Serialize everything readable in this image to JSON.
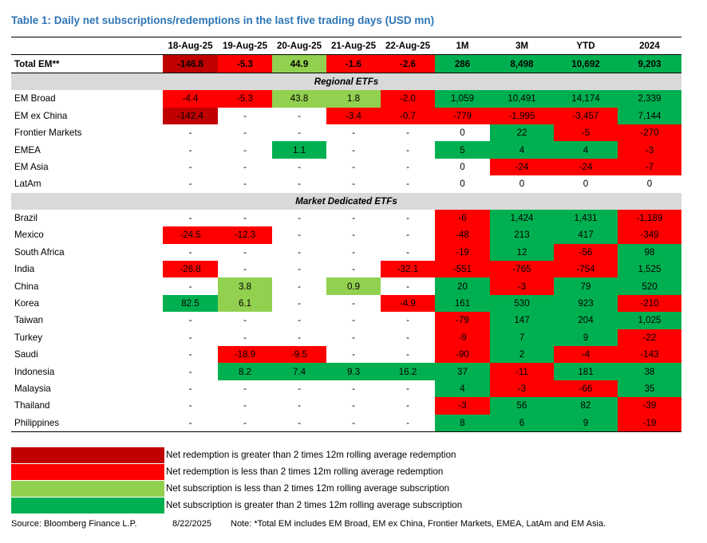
{
  "title": "Table 1: Daily net subscriptions/redemptions in the last five trading days (USD mn)",
  "columns": [
    "18-Aug-25",
    "19-Aug-25",
    "20-Aug-25",
    "21-Aug-25",
    "22-Aug-25",
    "1M",
    "3M",
    "YTD",
    "2024"
  ],
  "colors": {
    "dr": "#c00000",
    "r": "#ff0000",
    "lg": "#92d050",
    "g": "#00b050"
  },
  "total": {
    "label": "Total EM**",
    "cells": [
      [
        "-146.8",
        "dr"
      ],
      [
        "-5.3",
        "r"
      ],
      [
        "44.9",
        "lg"
      ],
      [
        "-1.6",
        "r"
      ],
      [
        "-2.6",
        "r"
      ],
      [
        "286",
        "g"
      ],
      [
        "8,498",
        "g"
      ],
      [
        "10,692",
        "g"
      ],
      [
        "9,203",
        "g"
      ]
    ]
  },
  "sections": [
    {
      "title": "Regional ETFs",
      "rows": [
        {
          "label": "EM Broad",
          "cells": [
            [
              "-4.4",
              "r"
            ],
            [
              "-5.3",
              "r"
            ],
            [
              "43.8",
              "lg"
            ],
            [
              "1.8",
              "lg"
            ],
            [
              "-2.0",
              "r"
            ],
            [
              "1,059",
              "g"
            ],
            [
              "10,491",
              "g"
            ],
            [
              "14,174",
              "g"
            ],
            [
              "2,339",
              "g"
            ]
          ]
        },
        {
          "label": "EM ex China",
          "cells": [
            [
              "-142.4",
              "dr"
            ],
            [
              "-",
              ""
            ],
            [
              "-",
              ""
            ],
            [
              "-3.4",
              "r"
            ],
            [
              "-0.7",
              "r"
            ],
            [
              "-779",
              "r"
            ],
            [
              "-1,995",
              "r"
            ],
            [
              "-3,457",
              "r"
            ],
            [
              "7,144",
              "g"
            ]
          ]
        },
        {
          "label": "Frontier Markets",
          "cells": [
            [
              "-",
              ""
            ],
            [
              "-",
              ""
            ],
            [
              "-",
              ""
            ],
            [
              "-",
              ""
            ],
            [
              "-",
              ""
            ],
            [
              "0",
              ""
            ],
            [
              "22",
              "g"
            ],
            [
              "-5",
              "r"
            ],
            [
              "-270",
              "r"
            ]
          ]
        },
        {
          "label": "EMEA",
          "cells": [
            [
              "-",
              ""
            ],
            [
              "-",
              ""
            ],
            [
              "1.1",
              "g"
            ],
            [
              "-",
              ""
            ],
            [
              "-",
              ""
            ],
            [
              "5",
              "g"
            ],
            [
              "4",
              "g"
            ],
            [
              "4",
              "g"
            ],
            [
              "-3",
              "r"
            ]
          ]
        },
        {
          "label": "EM Asia",
          "cells": [
            [
              "-",
              ""
            ],
            [
              "-",
              ""
            ],
            [
              "-",
              ""
            ],
            [
              "-",
              ""
            ],
            [
              "-",
              ""
            ],
            [
              "0",
              ""
            ],
            [
              "-24",
              "r"
            ],
            [
              "-24",
              "r"
            ],
            [
              "-7",
              "r"
            ]
          ]
        },
        {
          "label": "LatAm",
          "cells": [
            [
              "-",
              ""
            ],
            [
              "-",
              ""
            ],
            [
              "-",
              ""
            ],
            [
              "-",
              ""
            ],
            [
              "-",
              ""
            ],
            [
              "0",
              ""
            ],
            [
              "0",
              ""
            ],
            [
              "0",
              ""
            ],
            [
              "0",
              ""
            ]
          ]
        }
      ]
    },
    {
      "title": "Market Dedicated ETFs",
      "rows": [
        {
          "label": "Brazil",
          "cells": [
            [
              "-",
              ""
            ],
            [
              "-",
              ""
            ],
            [
              "-",
              ""
            ],
            [
              "-",
              ""
            ],
            [
              "-",
              ""
            ],
            [
              "-6",
              "r"
            ],
            [
              "1,424",
              "g"
            ],
            [
              "1,431",
              "g"
            ],
            [
              "-1,189",
              "r"
            ]
          ]
        },
        {
          "label": "Mexico",
          "cells": [
            [
              "-24.5",
              "r"
            ],
            [
              "-12.3",
              "r"
            ],
            [
              "-",
              ""
            ],
            [
              "-",
              ""
            ],
            [
              "-",
              ""
            ],
            [
              "-48",
              "r"
            ],
            [
              "213",
              "g"
            ],
            [
              "417",
              "g"
            ],
            [
              "-349",
              "r"
            ]
          ]
        },
        {
          "label": "South Africa",
          "cells": [
            [
              "-",
              ""
            ],
            [
              "-",
              ""
            ],
            [
              "-",
              ""
            ],
            [
              "-",
              ""
            ],
            [
              "-",
              ""
            ],
            [
              "-19",
              "r"
            ],
            [
              "12",
              "g"
            ],
            [
              "-56",
              "r"
            ],
            [
              "98",
              "g"
            ]
          ]
        },
        {
          "label": "India",
          "cells": [
            [
              "-26.8",
              "r"
            ],
            [
              "-",
              ""
            ],
            [
              "-",
              ""
            ],
            [
              "-",
              ""
            ],
            [
              "-32.1",
              "r"
            ],
            [
              "-551",
              "r"
            ],
            [
              "-765",
              "r"
            ],
            [
              "-754",
              "r"
            ],
            [
              "1,525",
              "g"
            ]
          ]
        },
        {
          "label": "China",
          "cells": [
            [
              "-",
              ""
            ],
            [
              "3.8",
              "lg"
            ],
            [
              "-",
              ""
            ],
            [
              "0.9",
              "lg"
            ],
            [
              "-",
              ""
            ],
            [
              "20",
              "g"
            ],
            [
              "-3",
              "r"
            ],
            [
              "79",
              "g"
            ],
            [
              "520",
              "g"
            ]
          ]
        },
        {
          "label": "Korea",
          "cells": [
            [
              "82.5",
              "g"
            ],
            [
              "6.1",
              "lg"
            ],
            [
              "-",
              ""
            ],
            [
              "-",
              ""
            ],
            [
              "-4.9",
              "r"
            ],
            [
              "161",
              "g"
            ],
            [
              "530",
              "g"
            ],
            [
              "923",
              "g"
            ],
            [
              "-210",
              "r"
            ]
          ]
        },
        {
          "label": "Taiwan",
          "cells": [
            [
              "-",
              ""
            ],
            [
              "-",
              ""
            ],
            [
              "-",
              ""
            ],
            [
              "-",
              ""
            ],
            [
              "-",
              ""
            ],
            [
              "-79",
              "r"
            ],
            [
              "147",
              "g"
            ],
            [
              "204",
              "g"
            ],
            [
              "1,025",
              "g"
            ]
          ]
        },
        {
          "label": "Turkey",
          "cells": [
            [
              "-",
              ""
            ],
            [
              "-",
              ""
            ],
            [
              "-",
              ""
            ],
            [
              "-",
              ""
            ],
            [
              "-",
              ""
            ],
            [
              "-9",
              "r"
            ],
            [
              "7",
              "g"
            ],
            [
              "9",
              "g"
            ],
            [
              "-22",
              "r"
            ]
          ]
        },
        {
          "label": "Saudi",
          "cells": [
            [
              "-",
              ""
            ],
            [
              "-18.9",
              "r"
            ],
            [
              "-9.5",
              "r"
            ],
            [
              "-",
              ""
            ],
            [
              "-",
              ""
            ],
            [
              "-90",
              "r"
            ],
            [
              "2",
              "g"
            ],
            [
              "-4",
              "r"
            ],
            [
              "-143",
              "r"
            ]
          ]
        },
        {
          "label": "Indonesia",
          "cells": [
            [
              "-",
              ""
            ],
            [
              "8.2",
              "g"
            ],
            [
              "7.4",
              "g"
            ],
            [
              "9.3",
              "g"
            ],
            [
              "16.2",
              "g"
            ],
            [
              "37",
              "g"
            ],
            [
              "-11",
              "r"
            ],
            [
              "181",
              "g"
            ],
            [
              "38",
              "g"
            ]
          ]
        },
        {
          "label": "Malaysia",
          "cells": [
            [
              "-",
              ""
            ],
            [
              "-",
              ""
            ],
            [
              "-",
              ""
            ],
            [
              "-",
              ""
            ],
            [
              "-",
              ""
            ],
            [
              "4",
              "g"
            ],
            [
              "-3",
              "r"
            ],
            [
              "-66",
              "r"
            ],
            [
              "35",
              "g"
            ]
          ]
        },
        {
          "label": "Thailand",
          "cells": [
            [
              "-",
              ""
            ],
            [
              "-",
              ""
            ],
            [
              "-",
              ""
            ],
            [
              "-",
              ""
            ],
            [
              "-",
              ""
            ],
            [
              "-3",
              "r"
            ],
            [
              "56",
              "g"
            ],
            [
              "82",
              "g"
            ],
            [
              "-39",
              "r"
            ]
          ]
        },
        {
          "label": "Philippines",
          "cells": [
            [
              "-",
              ""
            ],
            [
              "-",
              ""
            ],
            [
              "-",
              ""
            ],
            [
              "-",
              ""
            ],
            [
              "-",
              ""
            ],
            [
              "8",
              "g"
            ],
            [
              "6",
              "g"
            ],
            [
              "9",
              "g"
            ],
            [
              "-19",
              "r"
            ]
          ]
        }
      ]
    }
  ],
  "legend": [
    {
      "color": "dr",
      "text": "Net redemption is greater than 2 times 12m rolling average redemption"
    },
    {
      "color": "r",
      "text": "Net redemption is less than 2 times 12m rolling average redemption"
    },
    {
      "color": "lg",
      "text": "Net subscription is less than 2 times 12m rolling average subscription"
    },
    {
      "color": "g",
      "text": "Net subscription is greater than 2 times 12m rolling average subscription"
    }
  ],
  "footer": {
    "source": "Source: Bloomberg Finance L.P.",
    "date": "8/22/2025",
    "note": "Note: *Total EM includes EM Broad, EM ex China, Frontier Markets, EMEA, LatAm and EM Asia."
  }
}
